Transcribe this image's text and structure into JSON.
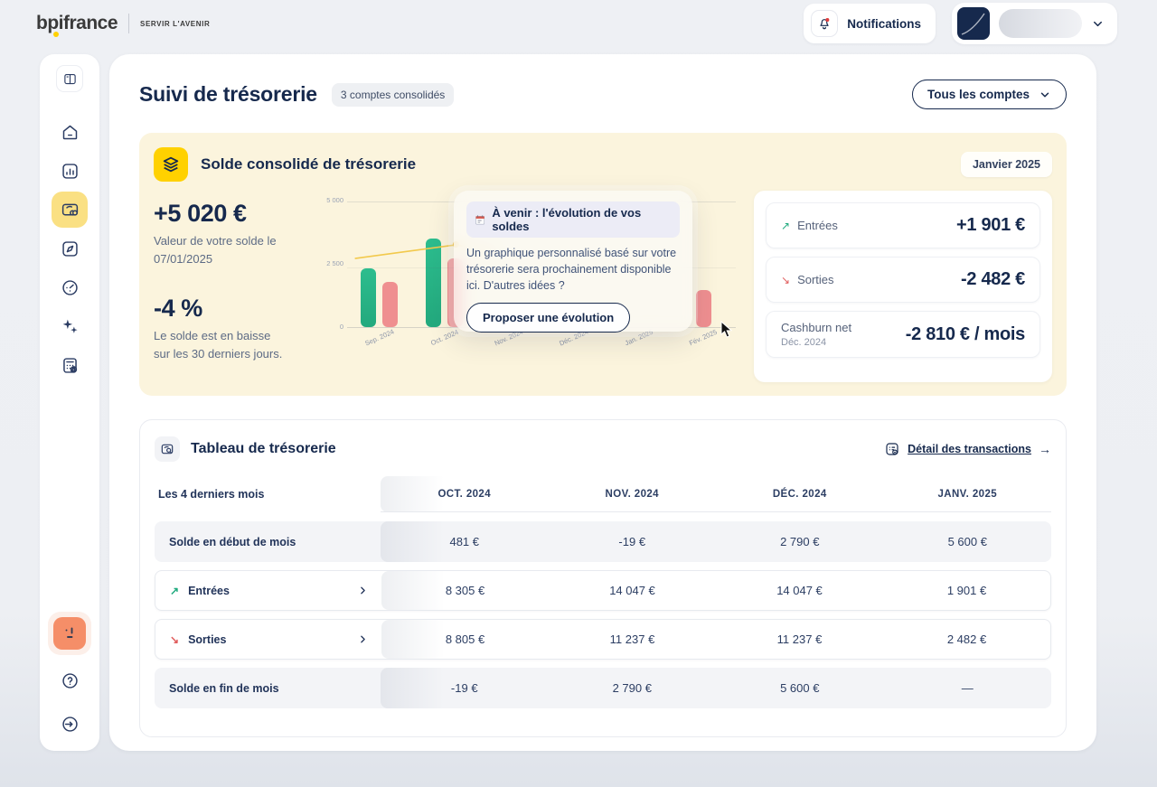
{
  "topbar": {
    "brand": "bpifrance",
    "tagline": "SERVIR L'AVENIR",
    "notifications_label": "Notifications"
  },
  "page": {
    "title": "Suivi de trésorerie",
    "badge": "3 comptes consolidés",
    "accounts_filter": "Tous les comptes"
  },
  "glyphs": {
    "arrow_up_right": "↗",
    "arrow_down_right": "↘",
    "arrow_right": "→"
  },
  "hero": {
    "title": "Solde consolidé de trésorerie",
    "month_badge": "Janvier 2025",
    "balance": {
      "value": "+5 020 €",
      "caption_line1": "Valeur de votre solde le",
      "caption_line2": "07/01/2025"
    },
    "trend": {
      "value": "-4 %",
      "caption_line1": "Le solde est en baisse",
      "caption_line2": "sur les 30 derniers jours."
    },
    "teaser": {
      "icon": "calendar",
      "title": "À venir : l'évolution de vos soldes",
      "body": "Un graphique personnalisé basé sur votre trésorerie sera prochainement disponible ici. D'autres idées ?",
      "button": "Proposer une évolution"
    },
    "summary": {
      "entries_label": "Entrées",
      "entries_value": "+1 901 €",
      "exits_label": "Sorties",
      "exits_value": "-2 482 €",
      "cashburn_label": "Cashburn net",
      "cashburn_period": "Déc. 2024",
      "cashburn_value": "-2 810 € / mois"
    }
  },
  "chart_data": {
    "type": "bar",
    "title": "Solde consolidé de trésorerie (aperçu graphique)",
    "categories": [
      "Sep. 2024",
      "Oct. 2024",
      "Nov. 2024",
      "Déc. 2024",
      "Jan. 2025",
      "Fév. 2025"
    ],
    "y_ticks": [
      "5 000",
      "2 500",
      "0"
    ],
    "ylim_pct": [
      0,
      100
    ],
    "grid": true,
    "series": [
      {
        "name": "barres vertes (entrées)",
        "color": "#2dbd8e",
        "heights_pct": [
          47,
          71,
          null,
          null,
          null,
          null
        ]
      },
      {
        "name": "barres roses (sorties)",
        "color": "#ef8f90",
        "heights_pct": [
          36,
          55,
          null,
          null,
          null,
          30
        ]
      }
    ],
    "line": {
      "name": "solde",
      "color": "#f2c94c",
      "points_pct": [
        {
          "x": 2,
          "y": 55
        },
        {
          "x": 28,
          "y": 66
        },
        {
          "x": 38,
          "y": 60
        }
      ],
      "marker_index": 1
    },
    "note": "centre du graphique masqué par la carte « À venir »"
  },
  "table": {
    "title": "Tableau de trésorerie",
    "link": "Détail des transactions",
    "first_col_header": "Les 4 derniers mois",
    "columns": [
      "OCT. 2024",
      "NOV. 2024",
      "DÉC. 2024",
      "JANV. 2025"
    ],
    "rows": [
      {
        "label": "Solde en début de mois",
        "variant": "gray",
        "icon": null,
        "expandable": false,
        "values": [
          "481 €",
          "-19 €",
          "2 790 €",
          "5 600 €"
        ]
      },
      {
        "label": "Entrées",
        "variant": "white",
        "icon": "up",
        "expandable": true,
        "values": [
          "8 305 €",
          "14 047 €",
          "14 047 €",
          "1 901 €"
        ]
      },
      {
        "label": "Sorties",
        "variant": "white",
        "icon": "down",
        "expandable": true,
        "values": [
          "8 805 €",
          "11 237 €",
          "11 237 €",
          "2 482 €"
        ]
      },
      {
        "label": "Solde en fin de mois",
        "variant": "gray",
        "icon": null,
        "expandable": false,
        "values": [
          "-19 €",
          "2 790 €",
          "5 600 €",
          "—"
        ]
      }
    ]
  },
  "colors": {
    "navy": "#16294d",
    "yellow": "#ffd100",
    "hero_bg": "#fbf4dd",
    "active_item": "#fae083",
    "green": "#2dbd8e",
    "pink": "#ef8f90",
    "line_yellow": "#f2c94c",
    "mascot_orange": "#f58e68",
    "notification_dot": "#e03b3b"
  }
}
